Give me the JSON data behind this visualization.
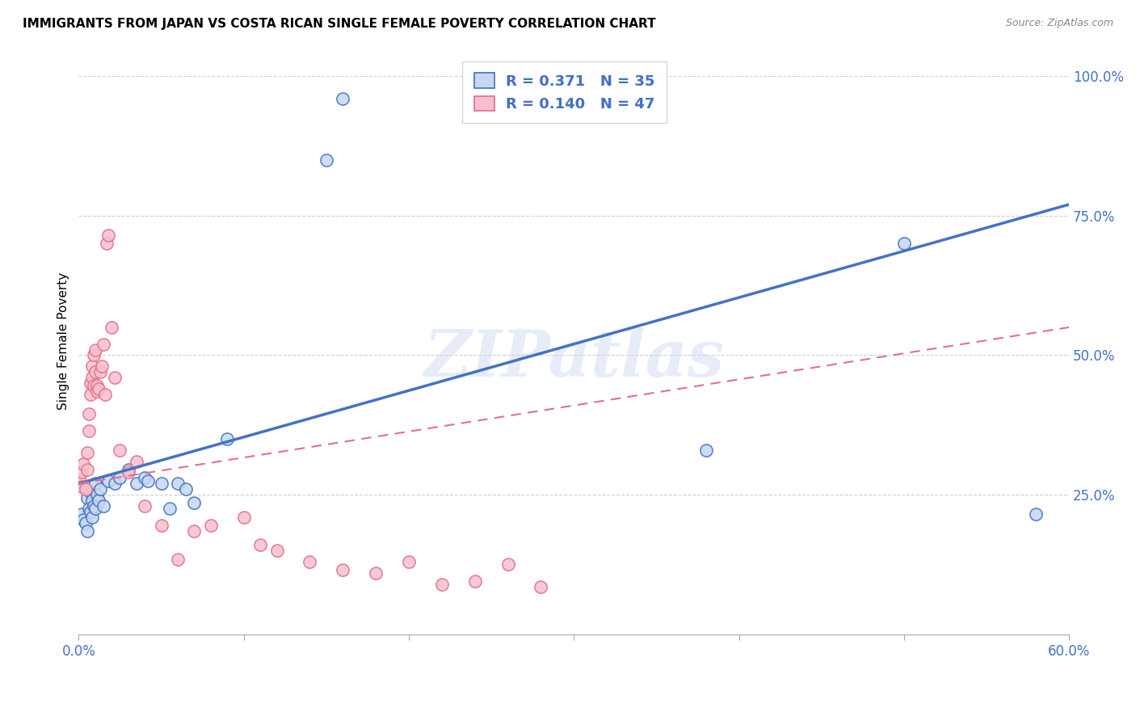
{
  "title": "IMMIGRANTS FROM JAPAN VS COSTA RICAN SINGLE FEMALE POVERTY CORRELATION CHART",
  "source": "Source: ZipAtlas.com",
  "ylabel": "Single Female Poverty",
  "watermark": "ZIPatlas",
  "color_japan_face": "#c5d8f0",
  "color_japan_edge": "#4472c4",
  "color_japan_line": "#4472c4",
  "color_costa_face": "#f8c0cc",
  "color_costa_edge": "#e07090",
  "color_costa_line": "#e07090",
  "xlim": [
    0.0,
    0.6
  ],
  "ylim": [
    0.0,
    1.05
  ],
  "background_color": "#ffffff",
  "grid_color": "#cccccc",
  "japan_line_x0": 0.0,
  "japan_line_y0": 0.27,
  "japan_line_x1": 0.6,
  "japan_line_y1": 0.77,
  "costa_line_x0": 0.0,
  "costa_line_y0": 0.27,
  "costa_line_x1": 0.6,
  "costa_line_y1": 0.55,
  "japan_x": [
    0.002,
    0.003,
    0.004,
    0.005,
    0.005,
    0.006,
    0.007,
    0.007,
    0.008,
    0.008,
    0.009,
    0.01,
    0.01,
    0.011,
    0.012,
    0.013,
    0.015,
    0.018,
    0.022,
    0.025,
    0.03,
    0.035,
    0.04,
    0.042,
    0.05,
    0.055,
    0.06,
    0.065,
    0.07,
    0.09,
    0.15,
    0.16,
    0.38,
    0.5,
    0.58
  ],
  "japan_y": [
    0.215,
    0.205,
    0.2,
    0.185,
    0.245,
    0.225,
    0.22,
    0.255,
    0.21,
    0.24,
    0.23,
    0.225,
    0.27,
    0.25,
    0.24,
    0.26,
    0.23,
    0.275,
    0.27,
    0.28,
    0.295,
    0.27,
    0.28,
    0.275,
    0.27,
    0.225,
    0.27,
    0.26,
    0.235,
    0.35,
    0.85,
    0.96,
    0.33,
    0.7,
    0.215
  ],
  "costa_x": [
    0.001,
    0.002,
    0.002,
    0.003,
    0.004,
    0.005,
    0.005,
    0.006,
    0.006,
    0.007,
    0.007,
    0.008,
    0.008,
    0.009,
    0.009,
    0.01,
    0.01,
    0.011,
    0.011,
    0.012,
    0.013,
    0.014,
    0.015,
    0.016,
    0.017,
    0.018,
    0.02,
    0.022,
    0.025,
    0.03,
    0.035,
    0.04,
    0.05,
    0.06,
    0.07,
    0.08,
    0.1,
    0.11,
    0.12,
    0.14,
    0.16,
    0.18,
    0.2,
    0.22,
    0.24,
    0.26,
    0.28
  ],
  "costa_y": [
    0.275,
    0.265,
    0.29,
    0.305,
    0.26,
    0.295,
    0.325,
    0.365,
    0.395,
    0.43,
    0.45,
    0.46,
    0.48,
    0.445,
    0.5,
    0.47,
    0.51,
    0.445,
    0.435,
    0.44,
    0.47,
    0.48,
    0.52,
    0.43,
    0.7,
    0.715,
    0.55,
    0.46,
    0.33,
    0.29,
    0.31,
    0.23,
    0.195,
    0.135,
    0.185,
    0.195,
    0.21,
    0.16,
    0.15,
    0.13,
    0.115,
    0.11,
    0.13,
    0.09,
    0.095,
    0.125,
    0.085
  ]
}
